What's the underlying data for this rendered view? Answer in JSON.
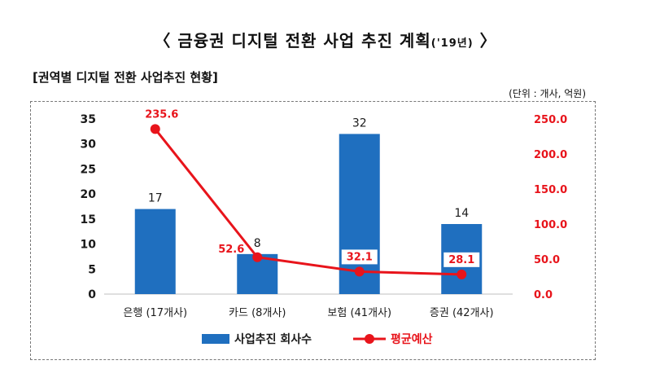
{
  "header": {
    "title": "〈 금융권 디지털 전환 사업 추진 계획",
    "title_year": "('19년)",
    "title_close": "〉"
  },
  "section": {
    "title": "[권역별 디지털 전환 사업추진 현황]"
  },
  "unit": "(단위 : 개사, 억원)",
  "colors": {
    "bar": "#1f6fbf",
    "line": "#e8141b",
    "axis_right": "#e8141b"
  },
  "chart_data": {
    "type": "bar",
    "categories": [
      "은행 (17개사)",
      "카드 (8개사)",
      "보험 (41개사)",
      "증권 (42개사)"
    ],
    "series": [
      {
        "name": "사업추진 회사수",
        "type": "bar",
        "axis": "left",
        "values": [
          17,
          8,
          32,
          14
        ]
      },
      {
        "name": "평균예산",
        "type": "line",
        "axis": "right",
        "values": [
          235.6,
          52.6,
          32.1,
          28.1
        ]
      }
    ],
    "y_left": {
      "ylim": [
        0,
        35
      ],
      "ticks": [
        "0",
        "5",
        "10",
        "15",
        "20",
        "25",
        "30",
        "35"
      ]
    },
    "y_right": {
      "ylim": [
        0,
        250
      ],
      "ticks": [
        "0.0",
        "50.0",
        "100.0",
        "150.0",
        "200.0",
        "250.0"
      ]
    },
    "bar_labels": [
      "17",
      "8",
      "32",
      "14"
    ],
    "line_labels": [
      "235.6",
      "52.6",
      "32.1",
      "28.1"
    ],
    "legend": {
      "position": "bottom",
      "bar": "사업추진 회사수",
      "line": "평균예산"
    },
    "grid": false
  }
}
